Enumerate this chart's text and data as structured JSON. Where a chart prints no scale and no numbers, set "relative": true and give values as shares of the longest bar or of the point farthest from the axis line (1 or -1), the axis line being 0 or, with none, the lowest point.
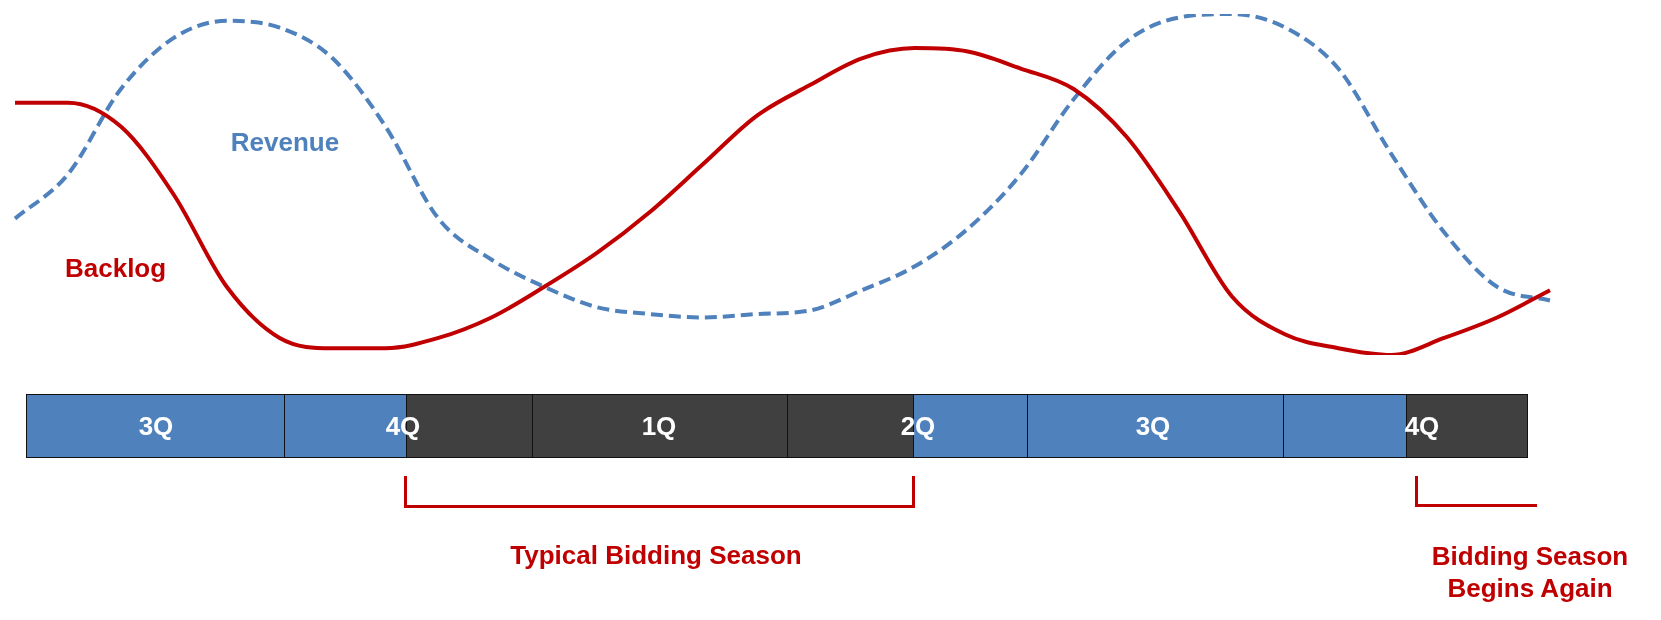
{
  "chart_data": {
    "type": "line",
    "relative": true,
    "legend": false,
    "marker": "none",
    "categories": [
      null,
      null,
      null,
      null,
      null,
      null,
      null,
      null,
      null,
      null,
      null,
      null,
      null,
      null,
      null,
      null,
      null,
      null,
      null,
      null,
      null,
      null,
      null,
      null,
      null,
      null,
      null,
      null,
      null,
      null
    ],
    "series": [
      {
        "name": "Backlog",
        "color": "#c00000",
        "line_style": "solid",
        "values": [
          0.74,
          0.74,
          0.67,
          0.47,
          0.2,
          0.05,
          0.02,
          0.02,
          0.05,
          0.11,
          0.2,
          0.3,
          0.42,
          0.56,
          0.7,
          0.79,
          0.87,
          0.9,
          0.89,
          0.84,
          0.78,
          0.64,
          0.42,
          0.17,
          0.06,
          0.02,
          0,
          0.05,
          0.11,
          0.19
        ]
      },
      {
        "name": "Revenue",
        "color": "#4f81bd",
        "line_style": "dashed",
        "values": [
          0.4,
          0.53,
          0.78,
          0.93,
          0.98,
          0.96,
          0.87,
          0.67,
          0.4,
          0.28,
          0.2,
          0.14,
          0.12,
          0.11,
          0.12,
          0.13,
          0.19,
          0.26,
          0.37,
          0.53,
          0.75,
          0.92,
          0.99,
          1,
          0.96,
          0.84,
          0.59,
          0.36,
          0.2,
          0.16
        ]
      }
    ],
    "annotations": [
      "3Q",
      "4Q",
      "1Q",
      "2Q",
      "3Q",
      "4Q",
      "Typical Bidding Season",
      "Bidding Season Begins Again"
    ]
  }
}
